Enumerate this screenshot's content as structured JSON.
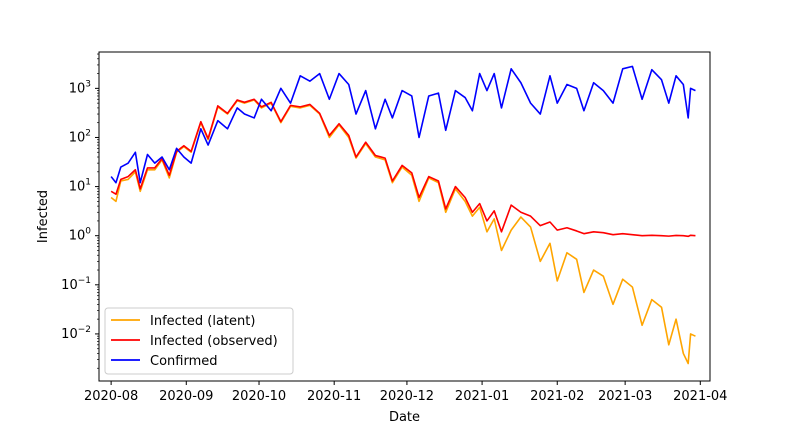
{
  "chart_data": {
    "type": "line",
    "title": "",
    "xlabel": "Date",
    "ylabel": "Infected",
    "yscale": "log",
    "xlim": [
      "2020-07-27",
      "2021-04-05"
    ],
    "ylim": [
      0.0011,
      5500
    ],
    "x_ticks": [
      "2020-08",
      "2020-09",
      "2020-10",
      "2020-11",
      "2020-12",
      "2021-01",
      "2021-02",
      "2021-03",
      "2021-04"
    ],
    "y_ticks": [
      {
        "value": 0.01,
        "base": "10",
        "exp": "−2"
      },
      {
        "value": 0.1,
        "base": "10",
        "exp": "−1"
      },
      {
        "value": 1,
        "base": "10",
        "exp": "0"
      },
      {
        "value": 10,
        "base": "10",
        "exp": "1"
      },
      {
        "value": 100,
        "base": "10",
        "exp": "2"
      },
      {
        "value": 1000,
        "base": "10",
        "exp": "3"
      }
    ],
    "grid": false,
    "legend_position": "lower-left",
    "series": [
      {
        "name": "Infected (latent)",
        "color": "#ffa500",
        "points": [
          [
            "2020-08-01",
            6.0
          ],
          [
            "2020-08-03",
            5.0
          ],
          [
            "2020-08-05",
            13.0
          ],
          [
            "2020-08-08",
            14.0
          ],
          [
            "2020-08-11",
            20.0
          ],
          [
            "2020-08-13",
            8.0
          ],
          [
            "2020-08-16",
            22.0
          ],
          [
            "2020-08-19",
            22.0
          ],
          [
            "2020-08-22",
            35.0
          ],
          [
            "2020-08-25",
            15.0
          ],
          [
            "2020-08-28",
            50.0
          ],
          [
            "2020-08-31",
            65.0
          ],
          [
            "2020-09-03",
            50.0
          ],
          [
            "2020-09-07",
            200.0
          ],
          [
            "2020-09-10",
            90.0
          ],
          [
            "2020-09-14",
            420.0
          ],
          [
            "2020-09-18",
            300.0
          ],
          [
            "2020-09-22",
            560.0
          ],
          [
            "2020-09-25",
            500.0
          ],
          [
            "2020-09-29",
            580.0
          ],
          [
            "2020-10-02",
            400.0
          ],
          [
            "2020-10-06",
            500.0
          ],
          [
            "2020-10-10",
            200.0
          ],
          [
            "2020-10-14",
            430.0
          ],
          [
            "2020-10-18",
            400.0
          ],
          [
            "2020-10-22",
            450.0
          ],
          [
            "2020-10-26",
            300.0
          ],
          [
            "2020-10-30",
            100.0
          ],
          [
            "2020-11-03",
            180.0
          ],
          [
            "2020-11-07",
            100.0
          ],
          [
            "2020-11-10",
            38.0
          ],
          [
            "2020-11-14",
            75.0
          ],
          [
            "2020-11-18",
            40.0
          ],
          [
            "2020-11-22",
            35.0
          ],
          [
            "2020-11-25",
            12.0
          ],
          [
            "2020-11-29",
            25.0
          ],
          [
            "2020-12-03",
            17.0
          ],
          [
            "2020-12-06",
            5.0
          ],
          [
            "2020-12-10",
            15.0
          ],
          [
            "2020-12-14",
            12.0
          ],
          [
            "2020-12-17",
            3.0
          ],
          [
            "2020-12-21",
            9.0
          ],
          [
            "2020-12-25",
            5.0
          ],
          [
            "2020-12-28",
            2.5
          ],
          [
            "2020-12-31",
            3.8
          ],
          [
            "2021-01-03",
            1.2
          ],
          [
            "2021-01-06",
            2.2
          ],
          [
            "2021-01-09",
            0.5
          ],
          [
            "2021-01-13",
            1.3
          ],
          [
            "2021-01-17",
            2.4
          ],
          [
            "2021-01-21",
            1.5
          ],
          [
            "2021-01-25",
            0.3
          ],
          [
            "2021-01-29",
            0.7
          ],
          [
            "2021-02-01",
            0.12
          ],
          [
            "2021-02-05",
            0.45
          ],
          [
            "2021-02-09",
            0.33
          ],
          [
            "2021-02-12",
            0.07
          ],
          [
            "2021-02-16",
            0.2
          ],
          [
            "2021-02-20",
            0.15
          ],
          [
            "2021-02-24",
            0.04
          ],
          [
            "2021-02-28",
            0.13
          ],
          [
            "2021-03-04",
            0.09
          ],
          [
            "2021-03-08",
            0.015
          ],
          [
            "2021-03-12",
            0.05
          ],
          [
            "2021-03-16",
            0.035
          ],
          [
            "2021-03-19",
            0.006
          ],
          [
            "2021-03-22",
            0.02
          ],
          [
            "2021-03-25",
            0.004
          ],
          [
            "2021-03-27",
            0.0025
          ],
          [
            "2021-03-28",
            0.01
          ],
          [
            "2021-03-30",
            0.009
          ]
        ]
      },
      {
        "name": "Infected (observed)",
        "color": "#ff0000",
        "points": [
          [
            "2020-08-01",
            8.0
          ],
          [
            "2020-08-03",
            7.0
          ],
          [
            "2020-08-05",
            14.0
          ],
          [
            "2020-08-08",
            16.0
          ],
          [
            "2020-08-11",
            22.0
          ],
          [
            "2020-08-13",
            9.0
          ],
          [
            "2020-08-16",
            24.0
          ],
          [
            "2020-08-19",
            24.0
          ],
          [
            "2020-08-22",
            37.0
          ],
          [
            "2020-08-25",
            17.0
          ],
          [
            "2020-08-28",
            52.0
          ],
          [
            "2020-08-31",
            68.0
          ],
          [
            "2020-09-03",
            52.0
          ],
          [
            "2020-09-07",
            210.0
          ],
          [
            "2020-09-10",
            95.0
          ],
          [
            "2020-09-14",
            440.0
          ],
          [
            "2020-09-18",
            310.0
          ],
          [
            "2020-09-22",
            580.0
          ],
          [
            "2020-09-25",
            520.0
          ],
          [
            "2020-09-29",
            600.0
          ],
          [
            "2020-10-02",
            420.0
          ],
          [
            "2020-10-06",
            520.0
          ],
          [
            "2020-10-10",
            210.0
          ],
          [
            "2020-10-14",
            450.0
          ],
          [
            "2020-10-18",
            420.0
          ],
          [
            "2020-10-22",
            470.0
          ],
          [
            "2020-10-26",
            310.0
          ],
          [
            "2020-10-30",
            110.0
          ],
          [
            "2020-11-03",
            190.0
          ],
          [
            "2020-11-07",
            110.0
          ],
          [
            "2020-11-10",
            40.0
          ],
          [
            "2020-11-14",
            80.0
          ],
          [
            "2020-11-18",
            43.0
          ],
          [
            "2020-11-22",
            38.0
          ],
          [
            "2020-11-25",
            13.0
          ],
          [
            "2020-11-29",
            27.0
          ],
          [
            "2020-12-03",
            19.0
          ],
          [
            "2020-12-06",
            6.0
          ],
          [
            "2020-12-10",
            16.0
          ],
          [
            "2020-12-14",
            13.0
          ],
          [
            "2020-12-17",
            3.5
          ],
          [
            "2020-12-21",
            10.0
          ],
          [
            "2020-12-25",
            6.0
          ],
          [
            "2020-12-28",
            3.0
          ],
          [
            "2020-12-31",
            4.5
          ],
          [
            "2021-01-03",
            2.0
          ],
          [
            "2021-01-06",
            3.2
          ],
          [
            "2021-01-09",
            1.2
          ],
          [
            "2021-01-13",
            4.2
          ],
          [
            "2021-01-17",
            3.0
          ],
          [
            "2021-01-21",
            2.5
          ],
          [
            "2021-01-25",
            1.6
          ],
          [
            "2021-01-29",
            1.9
          ],
          [
            "2021-02-01",
            1.3
          ],
          [
            "2021-02-05",
            1.45
          ],
          [
            "2021-02-09",
            1.25
          ],
          [
            "2021-02-12",
            1.1
          ],
          [
            "2021-02-16",
            1.2
          ],
          [
            "2021-02-20",
            1.15
          ],
          [
            "2021-02-24",
            1.05
          ],
          [
            "2021-02-28",
            1.1
          ],
          [
            "2021-03-04",
            1.05
          ],
          [
            "2021-03-08",
            1.0
          ],
          [
            "2021-03-12",
            1.02
          ],
          [
            "2021-03-16",
            1.0
          ],
          [
            "2021-03-19",
            0.98
          ],
          [
            "2021-03-22",
            1.01
          ],
          [
            "2021-03-25",
            1.0
          ],
          [
            "2021-03-27",
            0.97
          ],
          [
            "2021-03-28",
            1.02
          ],
          [
            "2021-03-30",
            1.0
          ]
        ]
      },
      {
        "name": "Confirmed",
        "color": "#0000ff",
        "points": [
          [
            "2020-08-01",
            16.0
          ],
          [
            "2020-08-03",
            12.0
          ],
          [
            "2020-08-05",
            25.0
          ],
          [
            "2020-08-08",
            30.0
          ],
          [
            "2020-08-11",
            50.0
          ],
          [
            "2020-08-13",
            12.0
          ],
          [
            "2020-08-16",
            45.0
          ],
          [
            "2020-08-19",
            30.0
          ],
          [
            "2020-08-22",
            40.0
          ],
          [
            "2020-08-25",
            22.0
          ],
          [
            "2020-08-28",
            60.0
          ],
          [
            "2020-08-31",
            40.0
          ],
          [
            "2020-09-03",
            30.0
          ],
          [
            "2020-09-07",
            150.0
          ],
          [
            "2020-09-10",
            70.0
          ],
          [
            "2020-09-14",
            220.0
          ],
          [
            "2020-09-18",
            150.0
          ],
          [
            "2020-09-22",
            400.0
          ],
          [
            "2020-09-25",
            300.0
          ],
          [
            "2020-09-29",
            250.0
          ],
          [
            "2020-10-02",
            600.0
          ],
          [
            "2020-10-06",
            350.0
          ],
          [
            "2020-10-10",
            1000.0
          ],
          [
            "2020-10-14",
            500.0
          ],
          [
            "2020-10-18",
            1800.0
          ],
          [
            "2020-10-22",
            1400.0
          ],
          [
            "2020-10-26",
            2000.0
          ],
          [
            "2020-10-30",
            600.0
          ],
          [
            "2020-11-03",
            2000.0
          ],
          [
            "2020-11-07",
            1200.0
          ],
          [
            "2020-11-10",
            300.0
          ],
          [
            "2020-11-14",
            900.0
          ],
          [
            "2020-11-18",
            150.0
          ],
          [
            "2020-11-22",
            600.0
          ],
          [
            "2020-11-25",
            250.0
          ],
          [
            "2020-11-29",
            900.0
          ],
          [
            "2020-12-03",
            700.0
          ],
          [
            "2020-12-06",
            100.0
          ],
          [
            "2020-12-10",
            700.0
          ],
          [
            "2020-12-14",
            800.0
          ],
          [
            "2020-12-17",
            140.0
          ],
          [
            "2020-12-21",
            900.0
          ],
          [
            "2020-12-25",
            650.0
          ],
          [
            "2020-12-28",
            350.0
          ],
          [
            "2020-12-31",
            2000.0
          ],
          [
            "2021-01-03",
            900.0
          ],
          [
            "2021-01-06",
            2000.0
          ],
          [
            "2021-01-09",
            400.0
          ],
          [
            "2021-01-13",
            2500.0
          ],
          [
            "2021-01-17",
            1300.0
          ],
          [
            "2021-01-21",
            500.0
          ],
          [
            "2021-01-25",
            300.0
          ],
          [
            "2021-01-29",
            1800.0
          ],
          [
            "2021-02-01",
            500.0
          ],
          [
            "2021-02-05",
            1200.0
          ],
          [
            "2021-02-09",
            1000.0
          ],
          [
            "2021-02-12",
            350.0
          ],
          [
            "2021-02-16",
            1300.0
          ],
          [
            "2021-02-20",
            900.0
          ],
          [
            "2021-02-24",
            500.0
          ],
          [
            "2021-02-28",
            2500.0
          ],
          [
            "2021-03-04",
            2800.0
          ],
          [
            "2021-03-08",
            600.0
          ],
          [
            "2021-03-12",
            2400.0
          ],
          [
            "2021-03-16",
            1500.0
          ],
          [
            "2021-03-19",
            500.0
          ],
          [
            "2021-03-22",
            1800.0
          ],
          [
            "2021-03-25",
            1200.0
          ],
          [
            "2021-03-27",
            250.0
          ],
          [
            "2021-03-28",
            1000.0
          ],
          [
            "2021-03-30",
            900.0
          ]
        ]
      }
    ]
  }
}
